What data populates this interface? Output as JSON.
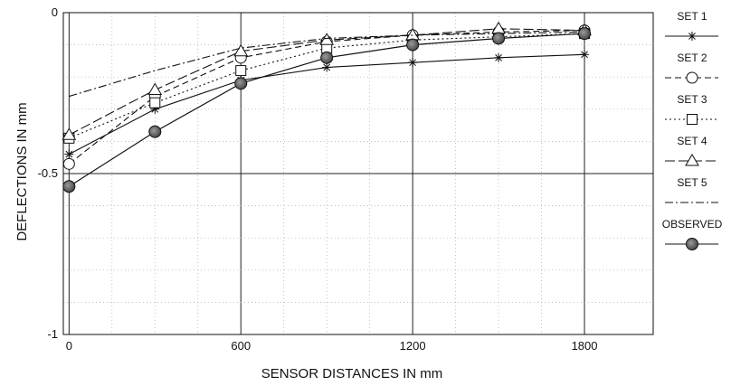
{
  "chart_data": {
    "type": "line",
    "xlabel": "SENSOR DISTANCES IN mm",
    "ylabel": "DEFLECTIONS IN mm",
    "xlim": [
      -20,
      2040
    ],
    "ylim": [
      -1,
      0
    ],
    "xticks": [
      0,
      600,
      1200,
      1800
    ],
    "yticks": [
      0,
      -0.5,
      -1
    ],
    "xtick_labels": [
      "0",
      "600",
      "1200",
      "1800"
    ],
    "ytick_labels": [
      "0",
      "-0.5",
      "-1"
    ],
    "grid": "dotted minor, solid at major ticks",
    "legend_position": "right",
    "x": [
      0,
      300,
      600,
      900,
      1200,
      1500,
      1800
    ],
    "series": [
      {
        "name": "SET 1",
        "marker": "star",
        "line": "solid",
        "values": [
          -0.44,
          -0.3,
          -0.21,
          -0.17,
          -0.155,
          -0.14,
          -0.13
        ]
      },
      {
        "name": "SET 2",
        "marker": "circle",
        "line": "dashed",
        "values": [
          -0.47,
          -0.26,
          -0.14,
          -0.09,
          -0.07,
          -0.06,
          -0.055
        ]
      },
      {
        "name": "SET 3",
        "marker": "square",
        "line": "dotted",
        "values": [
          -0.39,
          -0.28,
          -0.18,
          -0.11,
          -0.085,
          -0.075,
          -0.065
        ]
      },
      {
        "name": "SET 4",
        "marker": "triangle",
        "line": "longdash",
        "values": [
          -0.38,
          -0.24,
          -0.12,
          -0.085,
          -0.07,
          -0.05,
          -0.055
        ]
      },
      {
        "name": "SET 5",
        "marker": "none",
        "line": "dashdot",
        "values": [
          -0.26,
          -0.18,
          -0.11,
          -0.08,
          -0.07,
          -0.065,
          -0.06
        ]
      },
      {
        "name": "OBSERVED",
        "marker": "filled-circle",
        "line": "solid",
        "values": [
          -0.54,
          -0.37,
          -0.22,
          -0.14,
          -0.1,
          -0.08,
          -0.065
        ]
      }
    ]
  }
}
